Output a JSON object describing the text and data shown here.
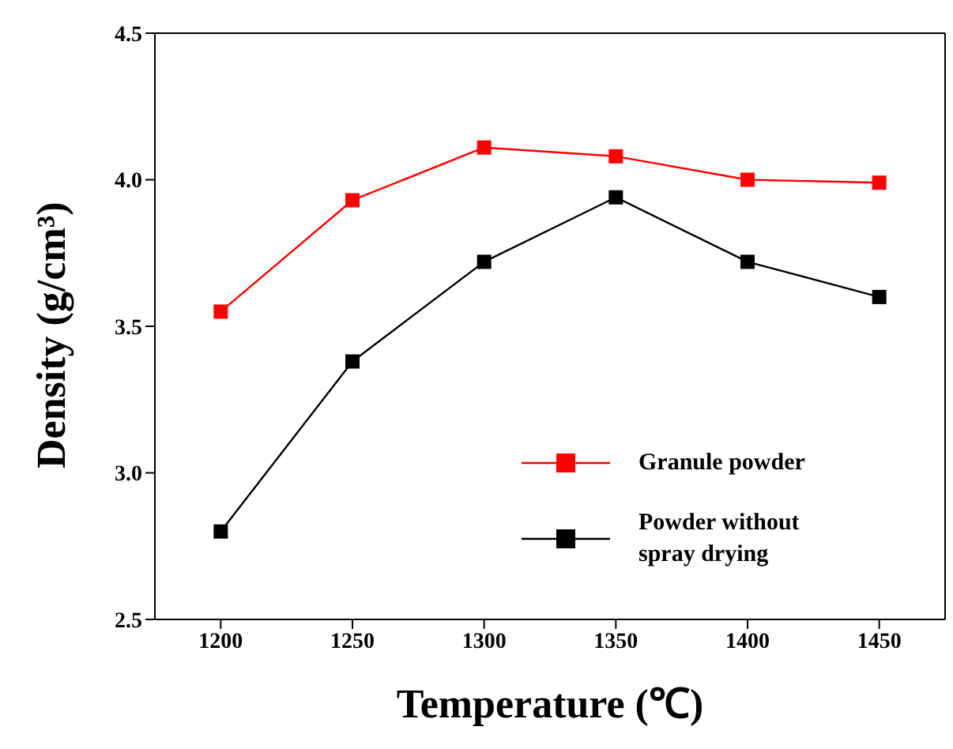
{
  "chart_data": {
    "type": "line",
    "xlabel": "Temperature (℃)",
    "ylabel": "Density (g/cm³)",
    "x": [
      1200,
      1250,
      1300,
      1350,
      1400,
      1450
    ],
    "series": [
      {
        "name": "Granule powder",
        "color": "#ff0000",
        "values": [
          3.55,
          3.93,
          4.11,
          4.08,
          4.0,
          3.99
        ]
      },
      {
        "name": "Powder without spray drying",
        "color": "#000000",
        "values": [
          2.8,
          3.38,
          3.72,
          3.94,
          3.72,
          3.6
        ]
      }
    ],
    "xlim": [
      1175,
      1475
    ],
    "xticks": [
      1200,
      1250,
      1300,
      1350,
      1400,
      1450
    ],
    "ylim": [
      2.5,
      4.5
    ],
    "yticks": [
      2.5,
      {
        "value": 3,
        "label": "3.0"
      },
      3.5,
      {
        "value": 4,
        "label": "4.0"
      },
      4.5
    ],
    "grid": false,
    "legend": "bottom right",
    "marker": "square",
    "line_style": "solid"
  }
}
